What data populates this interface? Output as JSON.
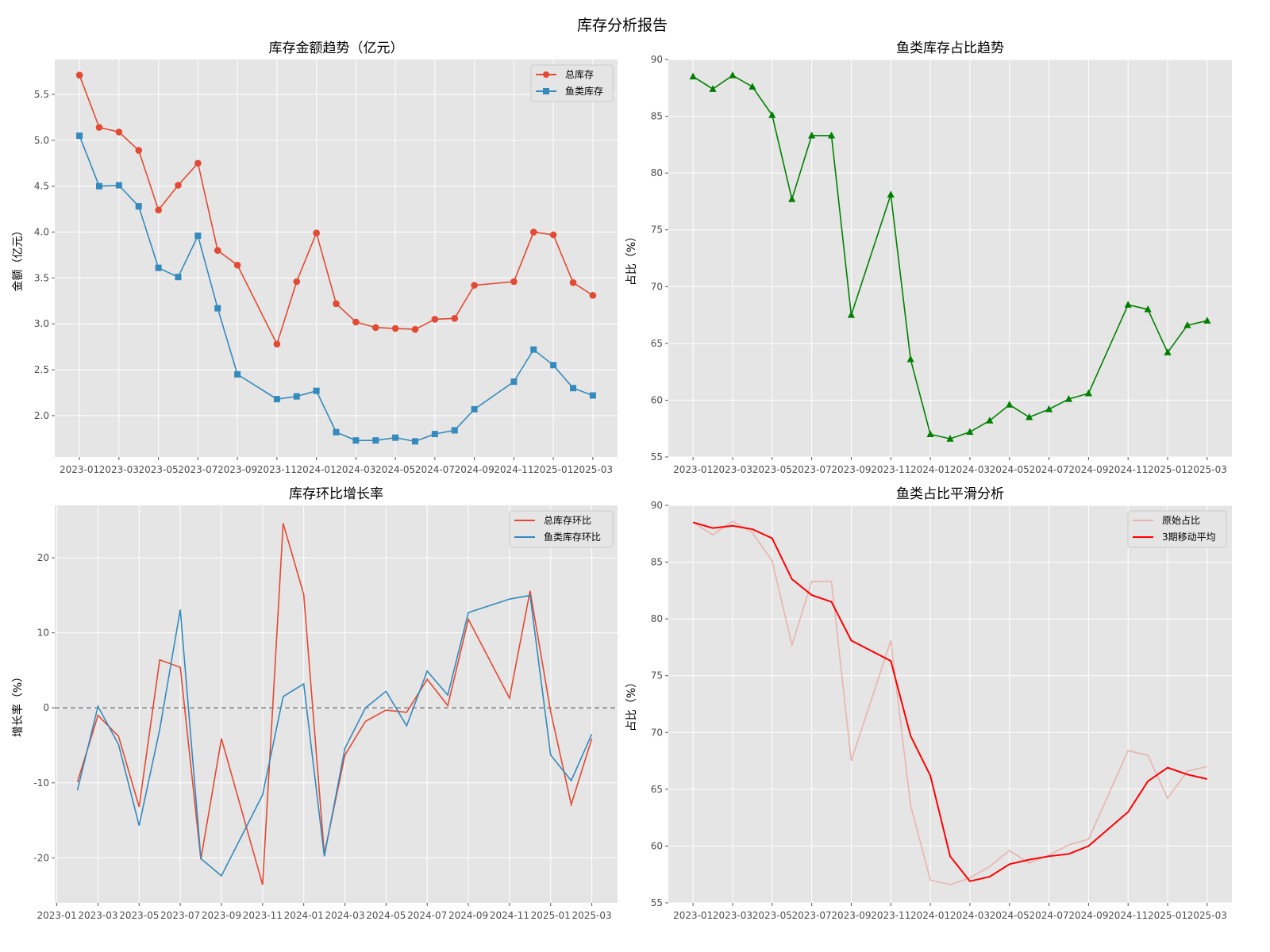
{
  "figure": {
    "title": "库存分析报告"
  },
  "colors": {
    "total": "#e24a33",
    "fish": "#348abd",
    "ratio": "#008000",
    "ma": "#ff0000",
    "raw": "#e8b4ae",
    "zero": "#808080"
  },
  "chart_data": [
    {
      "type": "line",
      "title": "库存金额趋势（亿元）",
      "ylabel": "金额（亿元）",
      "xlabel": "",
      "x": [
        "2023-01",
        "2023-02",
        "2023-03",
        "2023-04",
        "2023-05",
        "2023-06",
        "2023-07",
        "2023-08",
        "2023-09",
        "2023-11",
        "2023-12",
        "2024-01",
        "2024-02",
        "2024-03",
        "2024-04",
        "2024-05",
        "2024-06",
        "2024-07",
        "2024-08",
        "2024-09",
        "2024-11",
        "2024-12",
        "2025-01",
        "2025-02",
        "2025-03"
      ],
      "xticks": [
        "2023-01",
        "2023-03",
        "2023-05",
        "2023-07",
        "2023-09",
        "2023-11",
        "2024-01",
        "2024-03",
        "2024-05",
        "2024-07",
        "2024-09",
        "2024-11",
        "2025-01",
        "2025-03"
      ],
      "yticks": [
        2.0,
        2.5,
        3.0,
        3.5,
        4.0,
        4.5,
        5.0,
        5.5
      ],
      "ylim": [
        1.55,
        5.88
      ],
      "legend": "top-right",
      "series": [
        {
          "name": "总库存",
          "color": "#e24a33",
          "marker": "circle",
          "values": [
            5.71,
            5.14,
            5.09,
            4.89,
            4.24,
            4.51,
            4.75,
            3.8,
            3.64,
            2.78,
            3.46,
            3.99,
            3.22,
            3.02,
            2.96,
            2.95,
            2.94,
            3.05,
            3.06,
            3.42,
            3.46,
            4.0,
            3.97,
            3.45,
            3.31
          ]
        },
        {
          "name": "鱼类库存",
          "color": "#348abd",
          "marker": "square",
          "values": [
            5.05,
            4.5,
            4.51,
            4.28,
            3.61,
            3.51,
            3.96,
            3.17,
            2.45,
            2.18,
            2.21,
            2.27,
            1.82,
            1.73,
            1.73,
            1.76,
            1.72,
            1.8,
            1.84,
            2.07,
            2.37,
            2.72,
            2.55,
            2.3,
            2.22
          ]
        }
      ]
    },
    {
      "type": "line",
      "title": "鱼类库存占比趋势",
      "ylabel": "占比（%）",
      "xlabel": "",
      "x": [
        "2023-01",
        "2023-02",
        "2023-03",
        "2023-04",
        "2023-05",
        "2023-06",
        "2023-07",
        "2023-08",
        "2023-09",
        "2023-11",
        "2023-12",
        "2024-01",
        "2024-02",
        "2024-03",
        "2024-04",
        "2024-05",
        "2024-06",
        "2024-07",
        "2024-08",
        "2024-09",
        "2024-11",
        "2024-12",
        "2025-01",
        "2025-02",
        "2025-03"
      ],
      "xticks": [
        "2023-01",
        "2023-03",
        "2023-05",
        "2023-07",
        "2023-09",
        "2023-11",
        "2024-01",
        "2024-03",
        "2024-05",
        "2024-07",
        "2024-09",
        "2024-11",
        "2025-01",
        "2025-03"
      ],
      "yticks": [
        55,
        60,
        65,
        70,
        75,
        80,
        85,
        90
      ],
      "ylim": [
        55,
        90
      ],
      "series": [
        {
          "name": "",
          "color": "#008000",
          "marker": "triangle",
          "values": [
            88.5,
            87.4,
            88.6,
            87.6,
            85.1,
            77.7,
            83.3,
            83.3,
            67.5,
            78.1,
            63.6,
            57.0,
            56.6,
            57.2,
            58.2,
            59.6,
            58.5,
            59.2,
            60.1,
            60.6,
            68.4,
            68.0,
            64.2,
            66.6,
            67.0
          ]
        }
      ]
    },
    {
      "type": "line",
      "title": "库存环比增长率",
      "ylabel": "增长率（%）",
      "xlabel": "",
      "x": [
        "2023-02",
        "2023-03",
        "2023-04",
        "2023-05",
        "2023-06",
        "2023-07",
        "2023-08",
        "2023-09",
        "2023-11",
        "2023-12",
        "2024-01",
        "2024-02",
        "2024-03",
        "2024-04",
        "2024-05",
        "2024-06",
        "2024-07",
        "2024-08",
        "2024-09",
        "2024-11",
        "2024-12",
        "2025-01",
        "2025-02",
        "2025-03"
      ],
      "xticks": [
        "2023-01",
        "2023-03",
        "2023-05",
        "2023-07",
        "2023-09",
        "2023-11",
        "2024-01",
        "2024-03",
        "2024-05",
        "2024-07",
        "2024-09",
        "2024-11",
        "2025-01",
        "2025-03"
      ],
      "yticks": [
        -20,
        -10,
        0,
        10,
        20
      ],
      "ylim": [
        -26,
        27
      ],
      "reference_line": 0,
      "legend": "top-right",
      "series": [
        {
          "name": "总库存环比",
          "color": "#e24a33",
          "values": [
            -9.9,
            -1.0,
            -3.8,
            -13.2,
            6.4,
            5.4,
            -20.2,
            -4.1,
            -23.6,
            24.6,
            15.1,
            -19.5,
            -6.3,
            -1.8,
            -0.3,
            -0.6,
            3.8,
            0.3,
            11.8,
            1.3,
            15.6,
            -0.5,
            -12.9,
            -4.1
          ]
        },
        {
          "name": "鱼类库存环比",
          "color": "#348abd",
          "values": [
            -11.0,
            0.2,
            -4.9,
            -15.7,
            -2.9,
            13.1,
            -20.1,
            -22.4,
            -11.6,
            1.5,
            3.2,
            -19.8,
            -5.4,
            0.0,
            2.2,
            -2.4,
            4.9,
            1.7,
            12.7,
            14.5,
            15.0,
            -6.3,
            -9.7,
            -3.5
          ]
        }
      ]
    },
    {
      "type": "line",
      "title": "鱼类占比平滑分析",
      "ylabel": "占比（%）",
      "xlabel": "",
      "x": [
        "2023-01",
        "2023-02",
        "2023-03",
        "2023-04",
        "2023-05",
        "2023-06",
        "2023-07",
        "2023-08",
        "2023-09",
        "2023-11",
        "2023-12",
        "2024-01",
        "2024-02",
        "2024-03",
        "2024-04",
        "2024-05",
        "2024-06",
        "2024-07",
        "2024-08",
        "2024-09",
        "2024-11",
        "2024-12",
        "2025-01",
        "2025-02",
        "2025-03"
      ],
      "xticks": [
        "2023-01",
        "2023-03",
        "2023-05",
        "2023-07",
        "2023-09",
        "2023-11",
        "2024-01",
        "2024-03",
        "2024-05",
        "2024-07",
        "2024-09",
        "2024-11",
        "2025-01",
        "2025-03"
      ],
      "yticks": [
        55,
        60,
        65,
        70,
        75,
        80,
        85,
        90
      ],
      "ylim": [
        55,
        90
      ],
      "legend": "top-right",
      "series": [
        {
          "name": "原始占比",
          "color": "#e8b4ae",
          "values": [
            88.5,
            87.4,
            88.6,
            87.6,
            85.1,
            77.7,
            83.3,
            83.3,
            67.5,
            78.1,
            63.6,
            57.0,
            56.6,
            57.2,
            58.2,
            59.6,
            58.5,
            59.2,
            60.1,
            60.6,
            68.4,
            68.0,
            64.2,
            66.6,
            67.0
          ]
        },
        {
          "name": "3期移动平均",
          "color": "#ff0000",
          "values": [
            88.5,
            88.0,
            88.2,
            87.9,
            87.1,
            83.5,
            82.1,
            81.5,
            78.1,
            76.3,
            69.7,
            66.2,
            59.1,
            56.9,
            57.3,
            58.4,
            58.8,
            59.1,
            59.3,
            60.0,
            63.0,
            65.7,
            66.9,
            66.3,
            65.9
          ]
        }
      ]
    }
  ]
}
